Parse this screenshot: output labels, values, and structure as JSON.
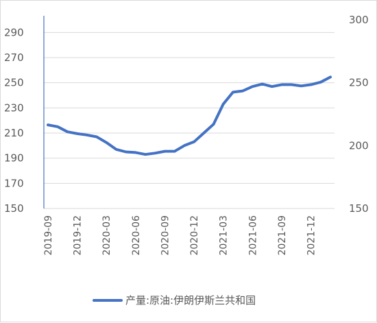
{
  "chart_data": {
    "type": "line",
    "title": "",
    "xlabel": "",
    "ylabel": "",
    "left_axis": {
      "ticks": [
        150,
        170,
        190,
        210,
        230,
        250,
        270,
        290
      ],
      "ylim": [
        150,
        300
      ]
    },
    "right_axis": {
      "ticks": [
        150,
        200,
        250,
        300
      ],
      "ylim": [
        150,
        300
      ]
    },
    "x_tick_labels": [
      "2019-09",
      "2019-12",
      "2020-03",
      "2020-06",
      "2020-09",
      "2020-12",
      "2021-03",
      "2021-06",
      "2021-09",
      "2021-12"
    ],
    "x": [
      "2019-09",
      "2019-10",
      "2019-11",
      "2019-12",
      "2020-01",
      "2020-02",
      "2020-03",
      "2020-04",
      "2020-05",
      "2020-06",
      "2020-07",
      "2020-08",
      "2020-09",
      "2020-10",
      "2020-11",
      "2020-12",
      "2021-01",
      "2021-02",
      "2021-03",
      "2021-04",
      "2021-05",
      "2021-06",
      "2021-07",
      "2021-08",
      "2021-09",
      "2021-10",
      "2021-11",
      "2021-12",
      "2022-01",
      "2022-02"
    ],
    "series": [
      {
        "name": "产量:原油:伊朗伊斯兰共和国",
        "color": "#4472c4",
        "axis": "left",
        "values": [
          216.5,
          215,
          211,
          209.5,
          208.5,
          207,
          202.5,
          197,
          195,
          194.5,
          193,
          194,
          195.5,
          195.5,
          200,
          203,
          210,
          217,
          233,
          242.5,
          243.5,
          247,
          249,
          247,
          248.5,
          248.5,
          247.5,
          248.5,
          250.5,
          254.5
        ]
      }
    ],
    "legend": "bottom",
    "grid": {
      "y": true,
      "x": false
    }
  }
}
